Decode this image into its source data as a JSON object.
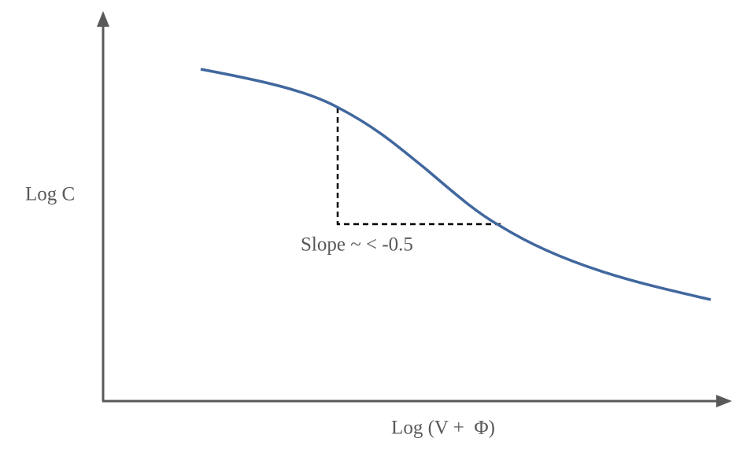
{
  "y_axis_label": "Log C",
  "x_axis_label": "Log (V +  Φ)",
  "annotation": "Slope ~ < -0.5"
}
